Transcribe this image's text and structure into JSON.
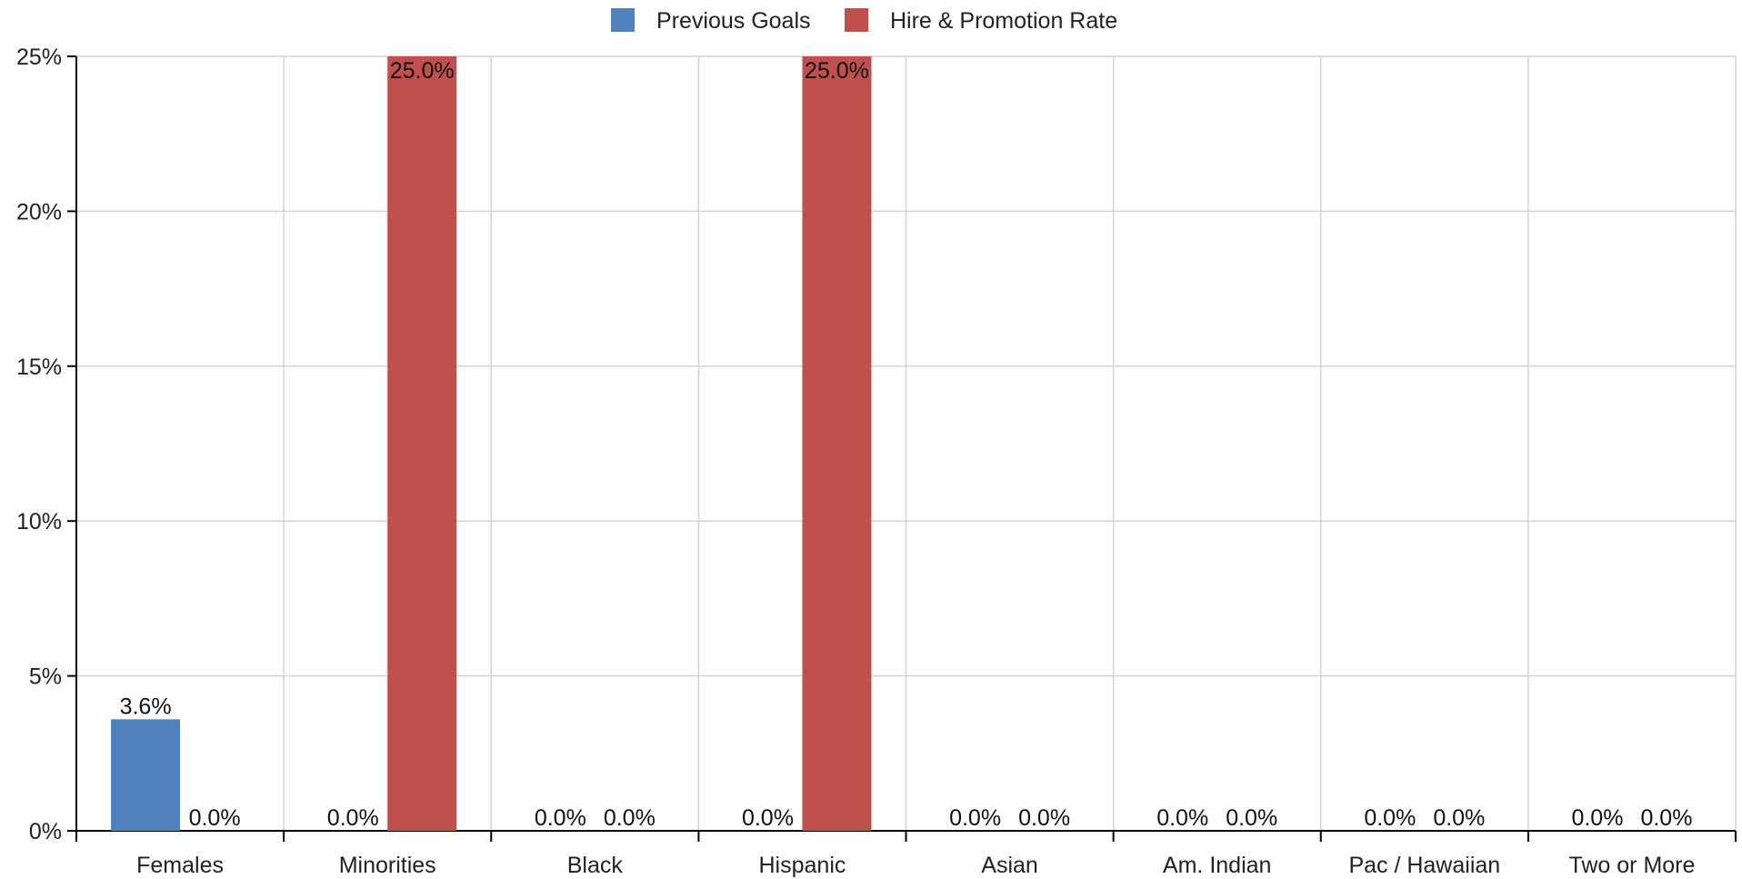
{
  "chart_data": {
    "type": "bar",
    "categories": [
      "Females",
      "Minorities",
      "Black",
      "Hispanic",
      "Asian",
      "Am. Indian",
      "Pac / Hawaiian",
      "Two or More"
    ],
    "series": [
      {
        "name": "Previous Goals",
        "color": "#4f81bd",
        "values": [
          3.6,
          0.0,
          0.0,
          0.0,
          0.0,
          0.0,
          0.0,
          0.0
        ],
        "labels": [
          "3.6%",
          "0.0%",
          "0.0%",
          "0.0%",
          "0.0%",
          "0.0%",
          "0.0%",
          "0.0%"
        ]
      },
      {
        "name": "Hire & Promotion Rate",
        "color": "#c0504d",
        "values": [
          0.0,
          25.0,
          0.0,
          25.0,
          0.0,
          0.0,
          0.0,
          0.0
        ],
        "labels": [
          "0.0%",
          "25.0%",
          "0.0%",
          "25.0%",
          "0.0%",
          "0.0%",
          "0.0%",
          "0.0%"
        ]
      }
    ],
    "ylim": [
      0,
      25
    ],
    "yticks": [
      0,
      5,
      10,
      15,
      20,
      25
    ],
    "ytick_labels": [
      "0%",
      "5%",
      "10%",
      "15%",
      "20%",
      "25%"
    ],
    "grid": true,
    "legend_position": "top-center"
  }
}
